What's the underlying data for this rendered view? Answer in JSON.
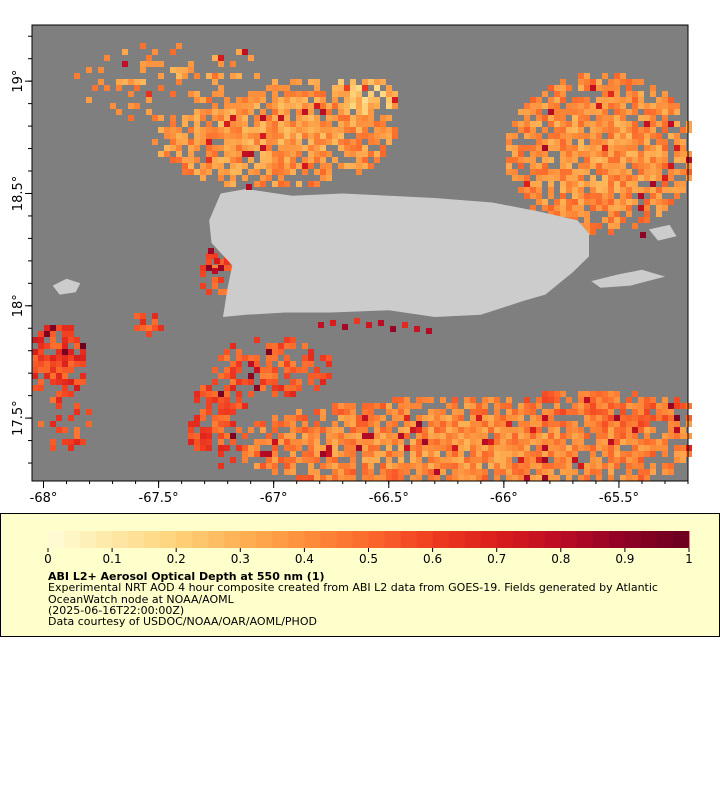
{
  "map": {
    "lon_range": [
      -68.05,
      -65.2
    ],
    "lat_range": [
      17.22,
      19.25
    ],
    "ocean_color": "#7f7f7f",
    "land_color": "#cccccc",
    "lon_ticks": [
      {
        "value": -68,
        "label": "-68°"
      },
      {
        "value": -67.5,
        "label": "-67.5°"
      },
      {
        "value": -67,
        "label": "-67°"
      },
      {
        "value": -66.5,
        "label": "-66.5°"
      },
      {
        "value": -66,
        "label": "-66°"
      },
      {
        "value": -65.5,
        "label": "-65.5°"
      }
    ],
    "lat_ticks": [
      {
        "value": 19,
        "label": "19°"
      },
      {
        "value": 18.5,
        "label": "18.5°"
      },
      {
        "value": 18,
        "label": "18°"
      },
      {
        "value": 17.5,
        "label": "17.5°"
      }
    ]
  },
  "colorbar": {
    "min": 0,
    "max": 1,
    "labels": [
      "0",
      "0.1",
      "0.2",
      "0.3",
      "0.4",
      "0.5",
      "0.6",
      "0.7",
      "0.8",
      "0.9",
      "1"
    ],
    "stops": [
      "#fffdd8",
      "#fee8a6",
      "#fed27a",
      "#feb154",
      "#fd8f3c",
      "#fb6a2c",
      "#f03c21",
      "#da1d1b",
      "#bb0c25",
      "#8e0226",
      "#6b001f"
    ]
  },
  "legend": {
    "title": "ABI L2+ Aerosol Optical Depth at 550 nm (1)",
    "line1": "Experimental NRT AOD 4 hour composite created from ABI L2 data from GOES-19. Fields generated by Atlantic OceanWatch node at NOAA/AOML",
    "line2": "(2025-06-16T22:00:00Z)",
    "line3": "Data courtesy of USDOC/NOAA/OAR/AOML/PHOD"
  }
}
